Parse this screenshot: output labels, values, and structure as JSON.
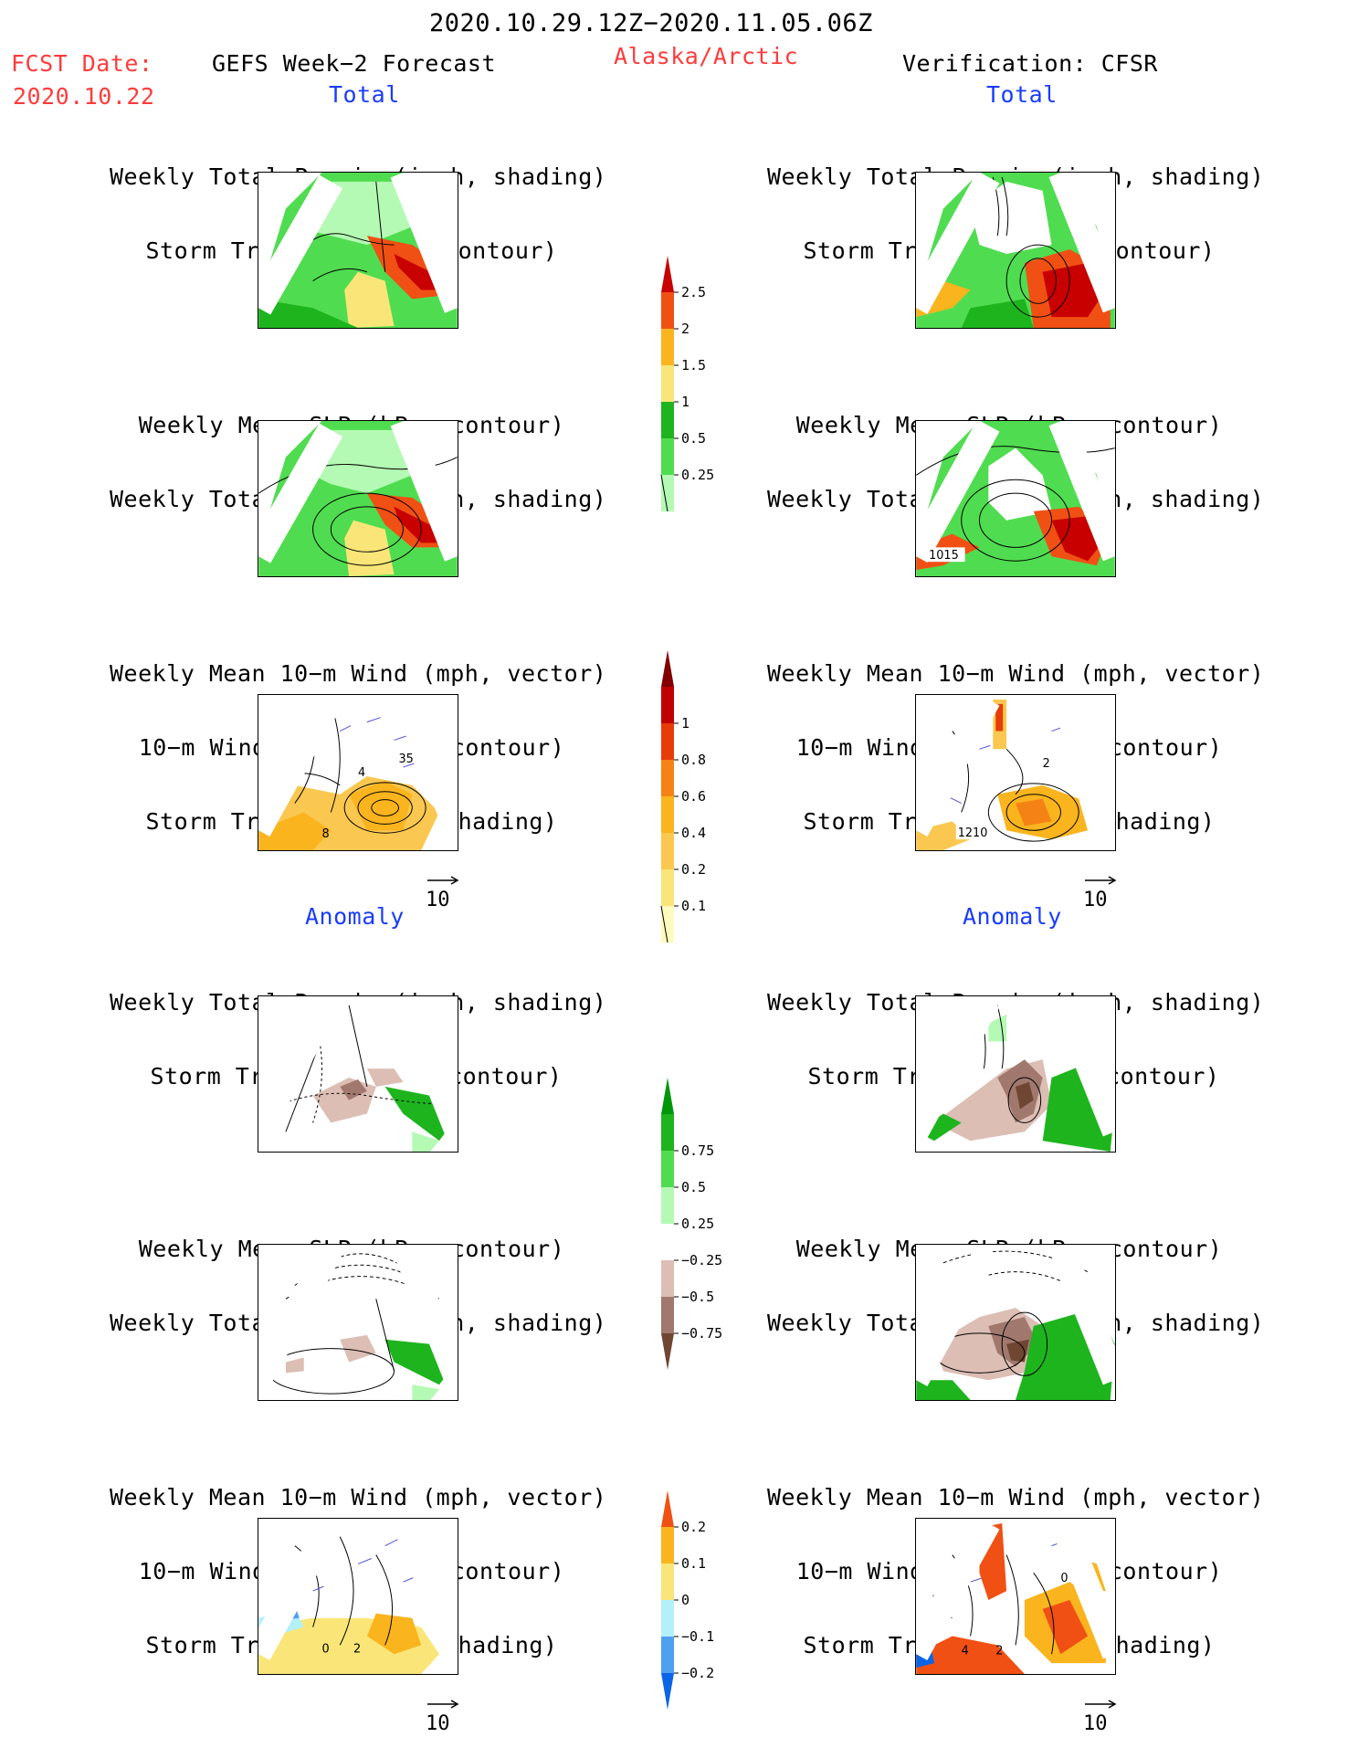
{
  "header": {
    "period": "2020.10.29.12Z−2020.11.05.06Z",
    "fcst_label": "FCST Date:",
    "fcst_date": "2020.10.22",
    "left_title": "GEFS Week−2 Forecast",
    "region": "Alaska/Arctic",
    "right_title": "Verification: CFSR"
  },
  "sections": {
    "total": "Total",
    "anomaly": "Anomaly"
  },
  "titles": {
    "precip_storm": [
      "Weekly Total Precip (inch, shading)",
      "Storm Track Density (contour)"
    ],
    "slp_precip": [
      "Weekly Mean SLP (hPa, contour)",
      "Weekly Total Precip (inch, shading)"
    ],
    "wind_storm": [
      "Weekly Mean 10−m Wind (mph, vector)",
      "10−m Wind Speed (mph, contour)",
      "Storm Track Density (shading)"
    ]
  },
  "vector_ref": "10",
  "map_labels": {
    "slp_obs": "1015",
    "wind_fcst_a": "35",
    "wind_fcst_b": "4",
    "wind_fcst_c": "8",
    "wind_obs_a": "2",
    "wind_obs_b": "1210",
    "anom_fcst_a": "0",
    "anom_fcst_b": "2",
    "anom_obs_a": "0",
    "anom_obs_b": "4",
    "anom_obs_c": "2"
  },
  "chart_data": [
    {
      "type": "colorbar",
      "name": "precip_total",
      "levels": [
        "0.25",
        "0.5",
        "1",
        "1.5",
        "2",
        "2.5"
      ],
      "colors": [
        "#b4fab4",
        "#50dc50",
        "#1eb41e",
        "#fae678",
        "#fab41e",
        "#f05014",
        "#c80000"
      ]
    },
    {
      "type": "colorbar",
      "name": "storm_density_total",
      "levels": [
        "0.1",
        "0.2",
        "0.4",
        "0.6",
        "0.8",
        "1"
      ],
      "colors": [
        "#fffabe",
        "#fae678",
        "#fac850",
        "#fab41e",
        "#f58214",
        "#e63c0a",
        "#be0000",
        "#820000"
      ]
    },
    {
      "type": "colorbar",
      "name": "precip_anomaly",
      "levels": [
        "−0.75",
        "−0.5",
        "−0.25",
        "0.25",
        "0.5",
        "0.75"
      ],
      "colors": [
        "#6e4632",
        "#a0786e",
        "#dcbeb4",
        "#ffffff",
        "#b4fab4",
        "#50dc50",
        "#1eb41e",
        "#00960a"
      ]
    },
    {
      "type": "colorbar",
      "name": "storm_density_anomaly",
      "levels": [
        "−0.2",
        "−0.1",
        "0",
        "0.1",
        "0.2"
      ],
      "colors": [
        "#0a64e6",
        "#50a0f0",
        "#b4f0fa",
        "#fae678",
        "#fab41e",
        "#f05014"
      ]
    }
  ],
  "colors": {
    "red_text": "#ff3b3b",
    "blue_text": "#1a3cff",
    "land_line": "#000000",
    "vector": "#5050dc"
  }
}
